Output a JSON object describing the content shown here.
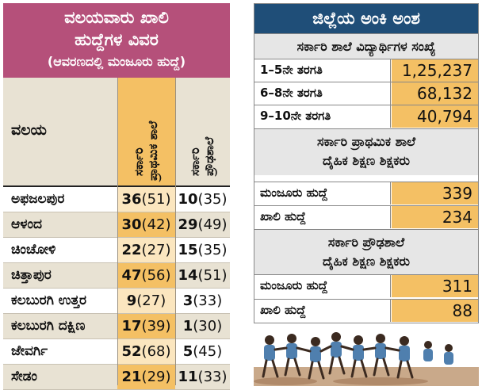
{
  "left_table": {
    "title_line1": "ವಲಯವಾರು ಖಾಲಿ",
    "title_line2": "ಹುದ್ದೆಗಳ ವಿವರ",
    "title_line3": "(ಆವರಣದಲ್ಲಿ ಮಂಜೂರು ಹುದ್ದೆ)",
    "col_region": "ವಲಯ",
    "col1_line1": "ಸರ್ಕಾರಿ",
    "col1_line2": "ಪ್ರಾಥಮಿಕ ಶಾಲೆ",
    "col2_line1": "ಸರ್ಕಾರಿ",
    "col2_line2": "ಪ್ರೌಢಶಾಲೆ",
    "rows": [
      {
        "name": "ಅಫಜಲಪುರ",
        "p_vac": "36",
        "p_san": "(51)",
        "h_vac": "10",
        "h_san": "(35)"
      },
      {
        "name": "ಆಳಂದ",
        "p_vac": "30",
        "p_san": "(42)",
        "h_vac": "29",
        "h_san": "(49)"
      },
      {
        "name": "ಚಿಂಚೋಳಿ",
        "p_vac": "22",
        "p_san": "(27)",
        "h_vac": "15",
        "h_san": "(35)"
      },
      {
        "name": "ಚಿತ್ತಾಪುರ",
        "p_vac": "47",
        "p_san": "(56)",
        "h_vac": "14",
        "h_san": "(51)"
      },
      {
        "name": "ಕಲಬುರಗಿ ಉತ್ತರ",
        "p_vac": "9",
        "p_san": "(27)",
        "h_vac": "3",
        "h_san": "(33)"
      },
      {
        "name": "ಕಲಬುರಗಿ ದಕ್ಷಿಣ",
        "p_vac": "17",
        "p_san": "(39)",
        "h_vac": "1",
        "h_san": "(30)"
      },
      {
        "name": "ಜೇವರ್ಗಿ",
        "p_vac": "52",
        "p_san": "(68)",
        "h_vac": "5",
        "h_san": "(45)"
      },
      {
        "name": "ಸೇಡಂ",
        "p_vac": "21",
        "p_san": "(29)",
        "h_vac": "11",
        "h_san": "(33)"
      }
    ]
  },
  "right_panel": {
    "title": "ಜಿಲ್ಲೆಯ ಅಂಕಿ ಅಂಶ",
    "section1": "ಸರ್ಕಾರಿ ಶಾಲೆ ವಿದ್ಯಾರ್ಥಿಗಳ ಸಂಖ್ಯೆ",
    "students": [
      {
        "label": "1–5ನೇ ತರಗತಿ",
        "value": "1,25,237"
      },
      {
        "label": "6–8ನೇ ತರಗತಿ",
        "value": "68,132"
      },
      {
        "label": "9–10ನೇ ತರಗತಿ",
        "value": "40,794"
      }
    ],
    "section2_line1": "ಸರ್ಕಾರಿ ಪ್ರಾಥಮಿಕ ಶಾಲೆ",
    "section2_line2": "ದೈಹಿಕ ಶಿಕ್ಷಣ ಶಿಕ್ಷಕರು",
    "primary_pe": [
      {
        "label": "ಮಂಜೂರು ಹುದ್ದೆ",
        "value": "339"
      },
      {
        "label": "ಖಾಲಿ ಹುದ್ದೆ",
        "value": "234"
      }
    ],
    "section3_line1": "ಸರ್ಕಾರಿ ಪ್ರೌಢಶಾಲೆ",
    "section3_line2": "ದೈಹಿಕ ಶಿಕ್ಷಣ ಶಿಕ್ಷಕರು",
    "high_pe": [
      {
        "label": "ಮಂಜೂರು ಹುದ್ದೆ",
        "value": "311"
      },
      {
        "label": "ಖಾಲಿ ಹುದ್ದೆ",
        "value": "88"
      }
    ]
  },
  "colors": {
    "left_header": "#b5507a",
    "right_header": "#1f4e78",
    "highlight": "#f4c064",
    "band": "#e8e2d3"
  }
}
